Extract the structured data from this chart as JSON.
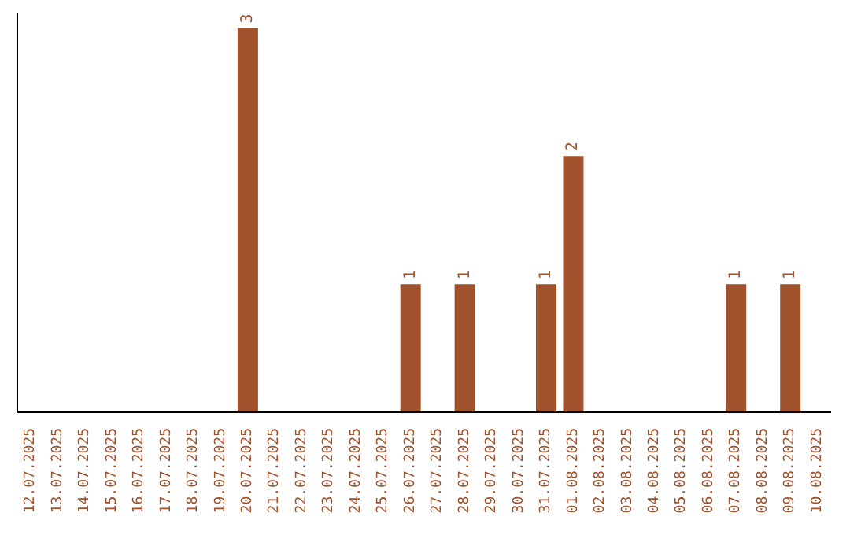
{
  "chart_data": {
    "type": "bar",
    "categories": [
      "12.07.2025",
      "13.07.2025",
      "14.07.2025",
      "15.07.2025",
      "16.07.2025",
      "17.07.2025",
      "18.07.2025",
      "19.07.2025",
      "20.07.2025",
      "21.07.2025",
      "22.07.2025",
      "23.07.2025",
      "24.07.2025",
      "25.07.2025",
      "26.07.2025",
      "27.07.2025",
      "28.07.2025",
      "29.07.2025",
      "30.07.2025",
      "31.07.2025",
      "01.08.2025",
      "02.08.2025",
      "03.08.2025",
      "04.08.2025",
      "05.08.2025",
      "06.08.2025",
      "07.08.2025",
      "08.08.2025",
      "09.08.2025",
      "10.08.2025"
    ],
    "values": [
      0,
      0,
      0,
      0,
      0,
      0,
      0,
      0,
      3,
      0,
      0,
      0,
      0,
      0,
      1,
      0,
      1,
      0,
      0,
      1,
      2,
      0,
      0,
      0,
      0,
      0,
      1,
      0,
      1,
      0
    ],
    "value_labels": [
      null,
      null,
      null,
      null,
      null,
      null,
      null,
      null,
      "3",
      null,
      null,
      null,
      null,
      null,
      "1",
      null,
      "1",
      null,
      null,
      "1",
      "2",
      null,
      null,
      null,
      null,
      null,
      "1",
      null,
      "1",
      null
    ],
    "color": "#a0522d",
    "grid": false,
    "legend": false
  }
}
